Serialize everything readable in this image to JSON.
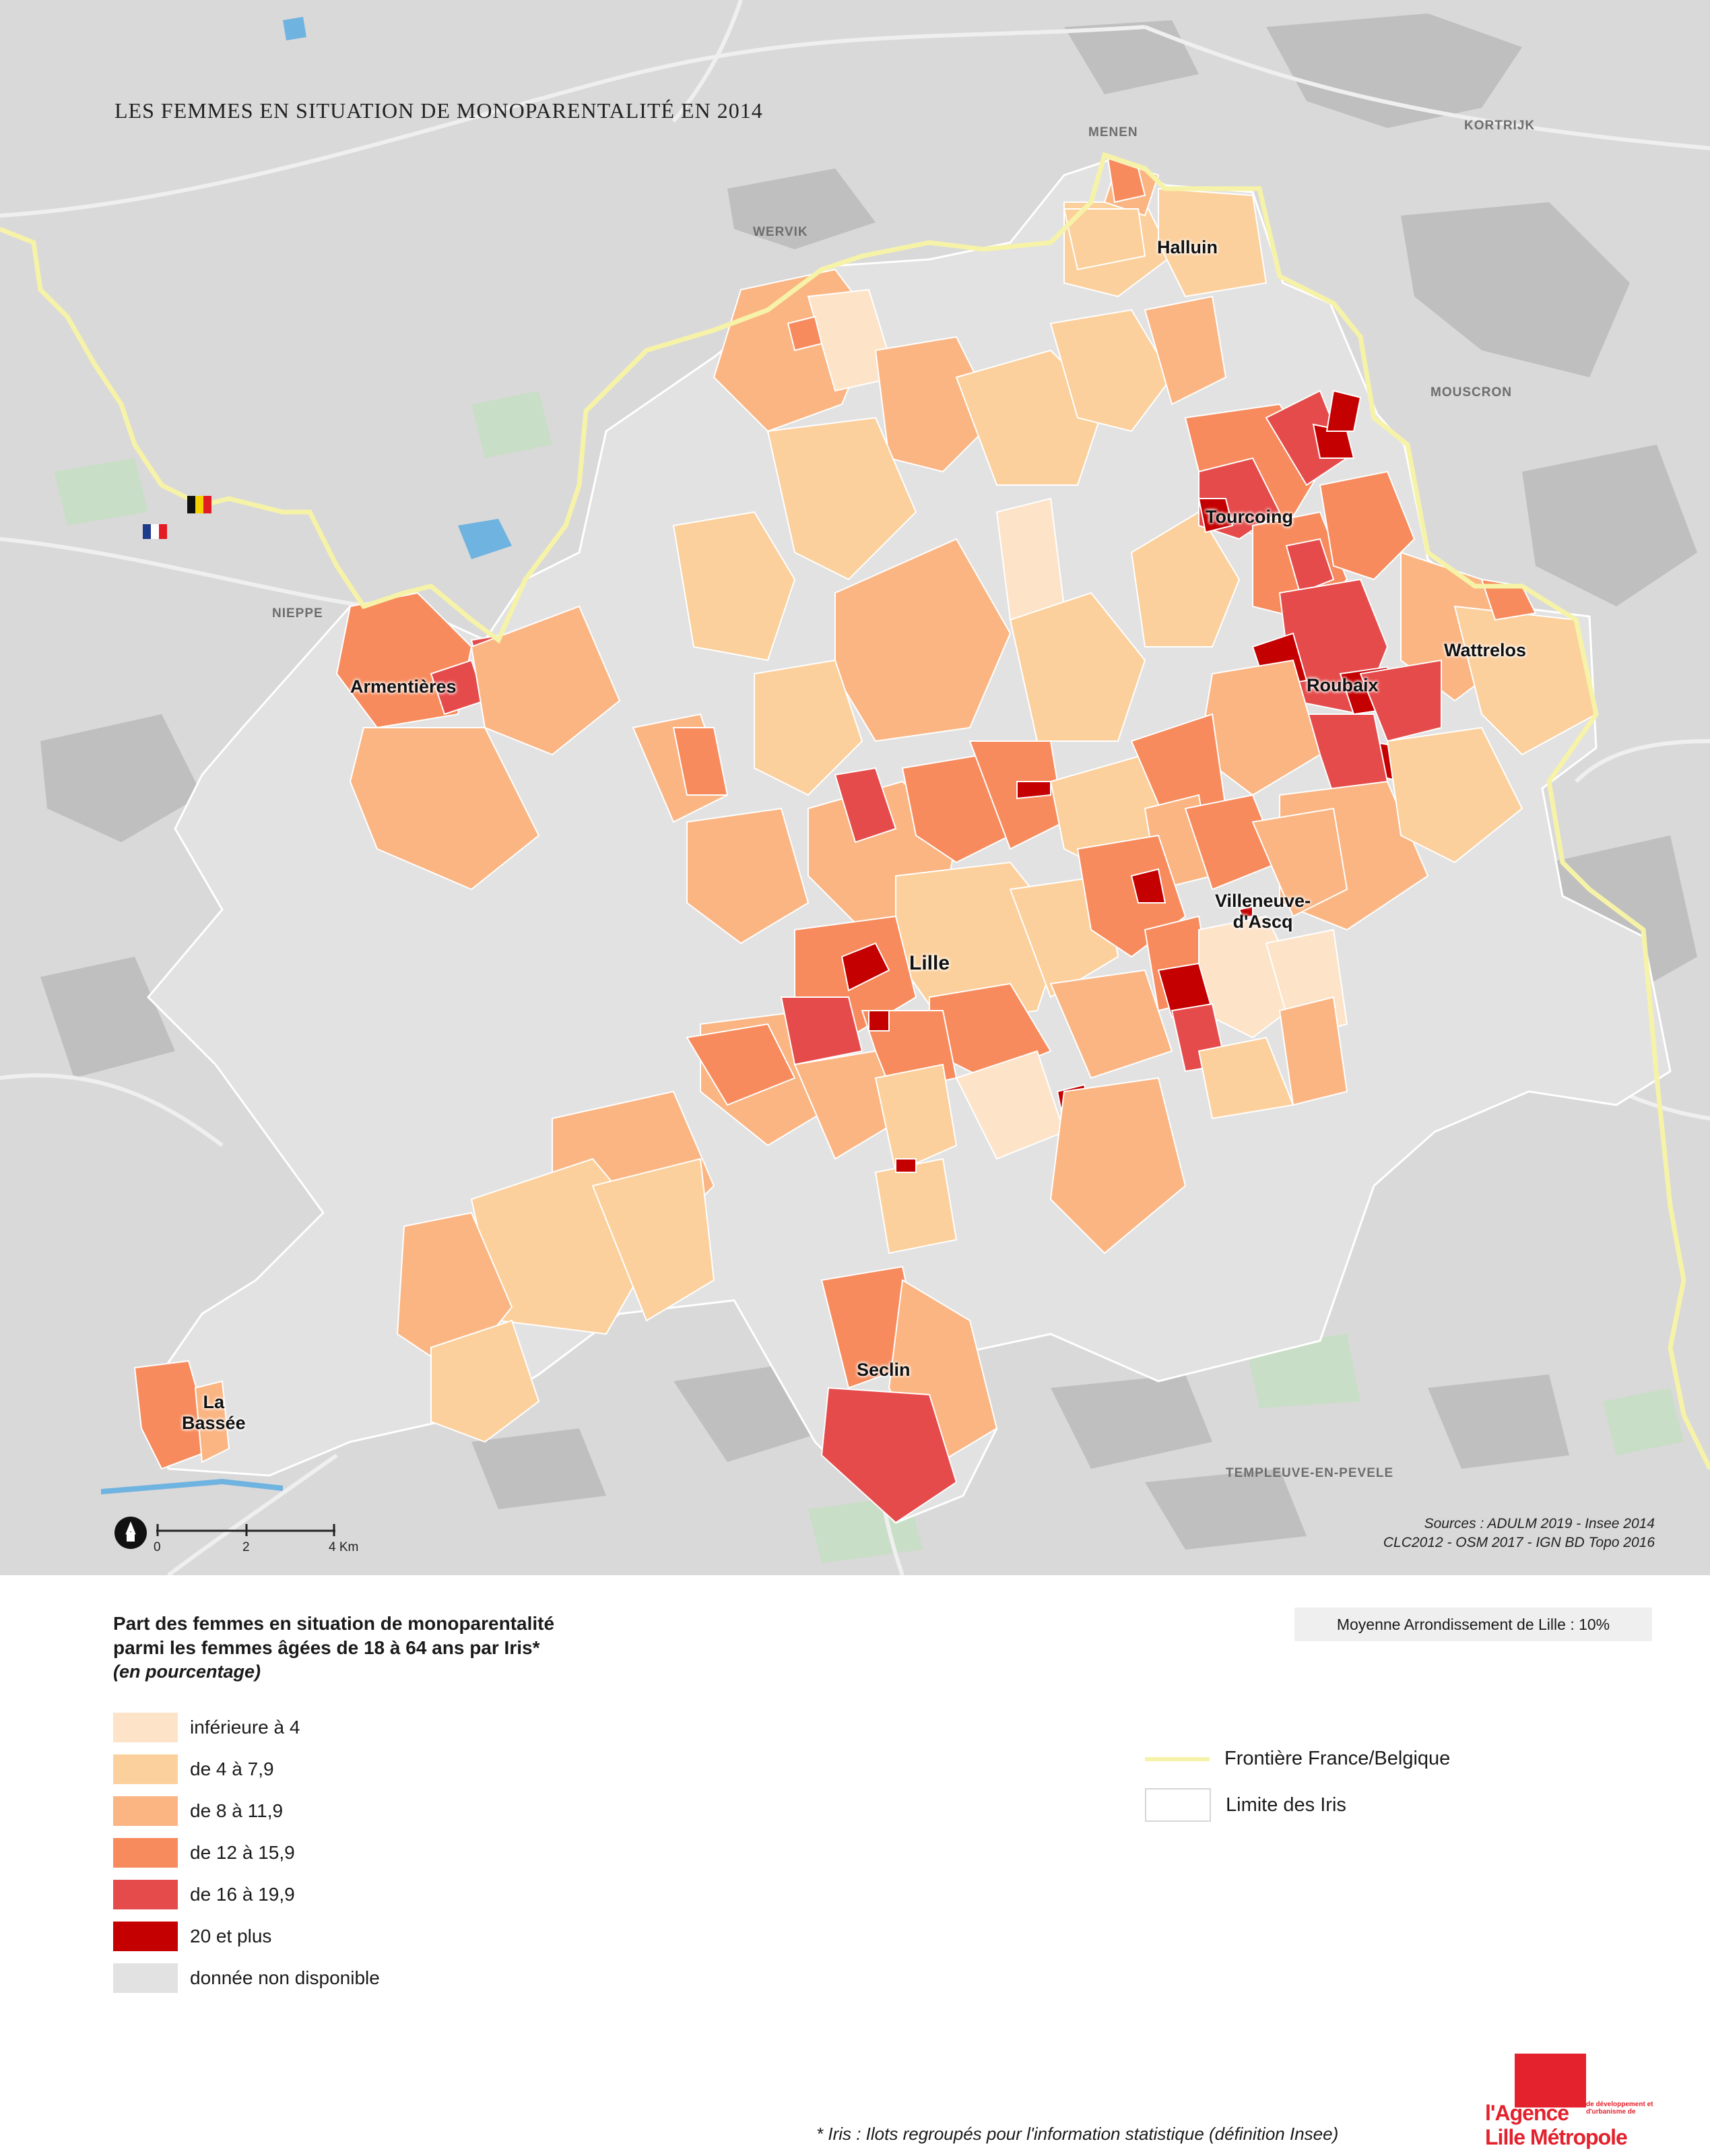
{
  "map": {
    "title": "LES FEMMES EN SITUATION DE MONOPARENTALITÉ EN 2014",
    "places": [
      "MENEN",
      "KORTRIJK",
      "WERVIK",
      "MOUSCRON",
      "NIEPPE",
      "TEMPLEUVE-EN-PEVELE"
    ],
    "cities": [
      "Halluin",
      "Tourcoing",
      "Wattrelos",
      "Roubaix",
      "Armentières",
      "Villeneuve-\nd'Ascq",
      "Lille",
      "Seclin",
      "La\nBassée"
    ],
    "flags": [
      "belgium-flag",
      "france-flag"
    ],
    "sources": [
      "Sources : ADULM 2019 - Insee 2014",
      "CLC2012 -  OSM 2017 - IGN BD Topo 2016"
    ],
    "scale": {
      "labels": [
        "0",
        "2",
        "4 Km"
      ]
    },
    "colors": {
      "background": "#d9d9d9",
      "border": "#f6f3a8",
      "water": "#6fb3e0",
      "green": "#c9dec6",
      "urban": "#bfbfbf",
      "roads": "#efefef"
    }
  },
  "legend": {
    "title": "Part des femmes en situation de monoparentalité\nparmi les femmes âgées de 18 à 64 ans par Iris*",
    "subtitle": "(en pourcentage)",
    "classes": [
      {
        "label": "inférieure à 4",
        "color": "#fde3c8"
      },
      {
        "label": "de 4 à 7,9",
        "color": "#fcd09c"
      },
      {
        "label": "de 8 à 11,9",
        "color": "#fbb583"
      },
      {
        "label": "de 12 à 15,9",
        "color": "#f78b5d"
      },
      {
        "label": "de 16 à 19,9",
        "color": "#e54b4b"
      },
      {
        "label": "20 et plus",
        "color": "#c40000"
      },
      {
        "label": "donnée non disponible",
        "color": "#e2e2e2"
      }
    ],
    "lines": [
      {
        "label": "Frontière France/Belgique",
        "color": "#f6f3a8"
      },
      {
        "label": "Limite des Iris",
        "color": "#d6d6d6"
      }
    ],
    "average": "Moyenne Arrondissement de Lille : 10%"
  },
  "footnote": "* Iris : Ilots regroupés pour l'information statistique (définition Insee)",
  "logo": {
    "lines": [
      "l'Agence",
      "de développement et d'urbanisme de",
      "Lille Métropole"
    ],
    "color": "#e3222d"
  }
}
